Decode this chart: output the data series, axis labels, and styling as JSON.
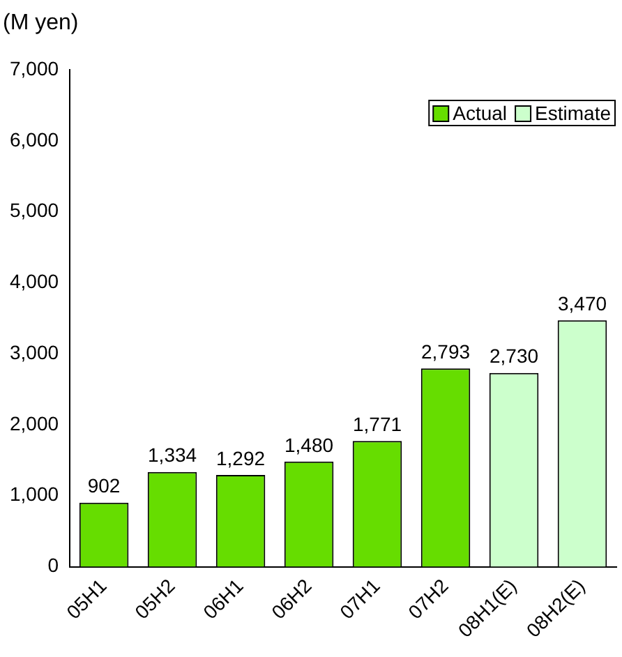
{
  "chart_data": {
    "type": "bar",
    "ylabel": "(M yen)",
    "categories": [
      "05H1",
      "05H2",
      "06H1",
      "06H2",
      "07H1",
      "07H2",
      "08H1(E)",
      "08H2(E)"
    ],
    "series": [
      {
        "name": "Actual",
        "color": "#66dd00",
        "values": [
          902,
          1334,
          1292,
          1480,
          1771,
          2793,
          null,
          null
        ],
        "value_labels": [
          "902",
          "1,334",
          "1,292",
          "1,480",
          "1,771",
          "2,793",
          null,
          null
        ]
      },
      {
        "name": "Estimate",
        "color": "#ccffcc",
        "values": [
          null,
          null,
          null,
          null,
          null,
          null,
          2730,
          3470
        ],
        "value_labels": [
          null,
          null,
          null,
          null,
          null,
          null,
          "2,730",
          "3,470"
        ]
      }
    ],
    "ylim": [
      0,
      7000
    ],
    "yticks": [
      {
        "value": 0,
        "label": "0"
      },
      {
        "value": 1000,
        "label": "1,000"
      },
      {
        "value": 2000,
        "label": "2,000"
      },
      {
        "value": 3000,
        "label": "3,000"
      },
      {
        "value": 4000,
        "label": "4,000"
      },
      {
        "value": 5000,
        "label": "5,000"
      },
      {
        "value": 6000,
        "label": "6,000"
      },
      {
        "value": 7000,
        "label": "7,000"
      }
    ],
    "grid": false,
    "legend": "top right"
  }
}
